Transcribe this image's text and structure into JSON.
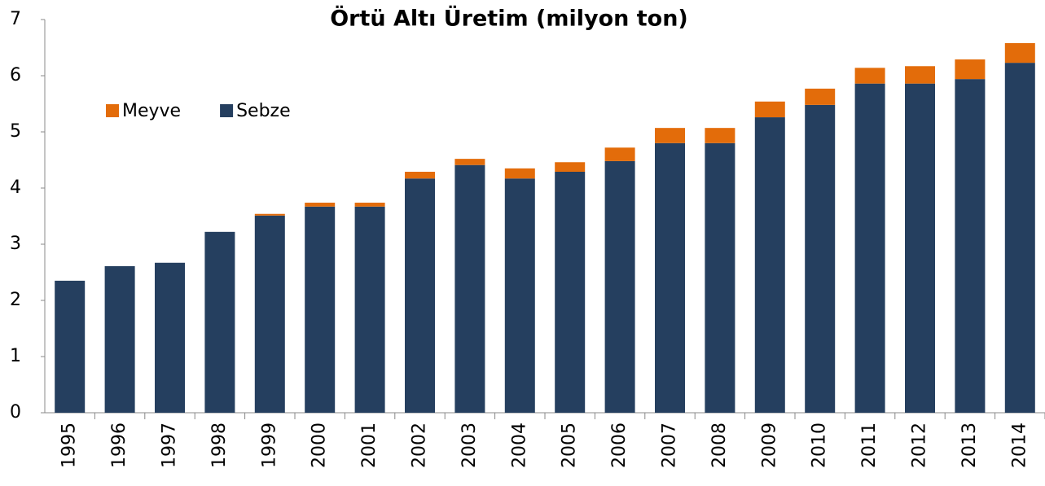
{
  "chart_data": {
    "type": "bar",
    "stacked": true,
    "title": "Örtü Altı Üretim (milyon ton)",
    "categories": [
      "1995",
      "1996",
      "1997",
      "1998",
      "1999",
      "2000",
      "2001",
      "2002",
      "2003",
      "2004",
      "2005",
      "2006",
      "2007",
      "2008",
      "2009",
      "2010",
      "2011",
      "2012",
      "2013",
      "2014"
    ],
    "series": [
      {
        "name": "Sebze",
        "color": "#253f5f",
        "values": [
          2.35,
          2.61,
          2.67,
          3.22,
          3.51,
          3.67,
          3.67,
          4.17,
          4.41,
          4.17,
          4.29,
          4.48,
          4.8,
          4.8,
          5.26,
          5.48,
          5.86,
          5.86,
          5.94,
          6.23
        ]
      },
      {
        "name": "Meyve",
        "color": "#e36c0a",
        "values": [
          0,
          0,
          0,
          0,
          0.03,
          0.07,
          0.07,
          0.12,
          0.11,
          0.18,
          0.17,
          0.24,
          0.27,
          0.27,
          0.28,
          0.29,
          0.28,
          0.31,
          0.35,
          0.35
        ]
      }
    ],
    "ylim": [
      0,
      7
    ],
    "yticks": [
      0,
      1,
      2,
      3,
      4,
      5,
      6,
      7
    ],
    "grid": false,
    "legend": "top-left"
  }
}
